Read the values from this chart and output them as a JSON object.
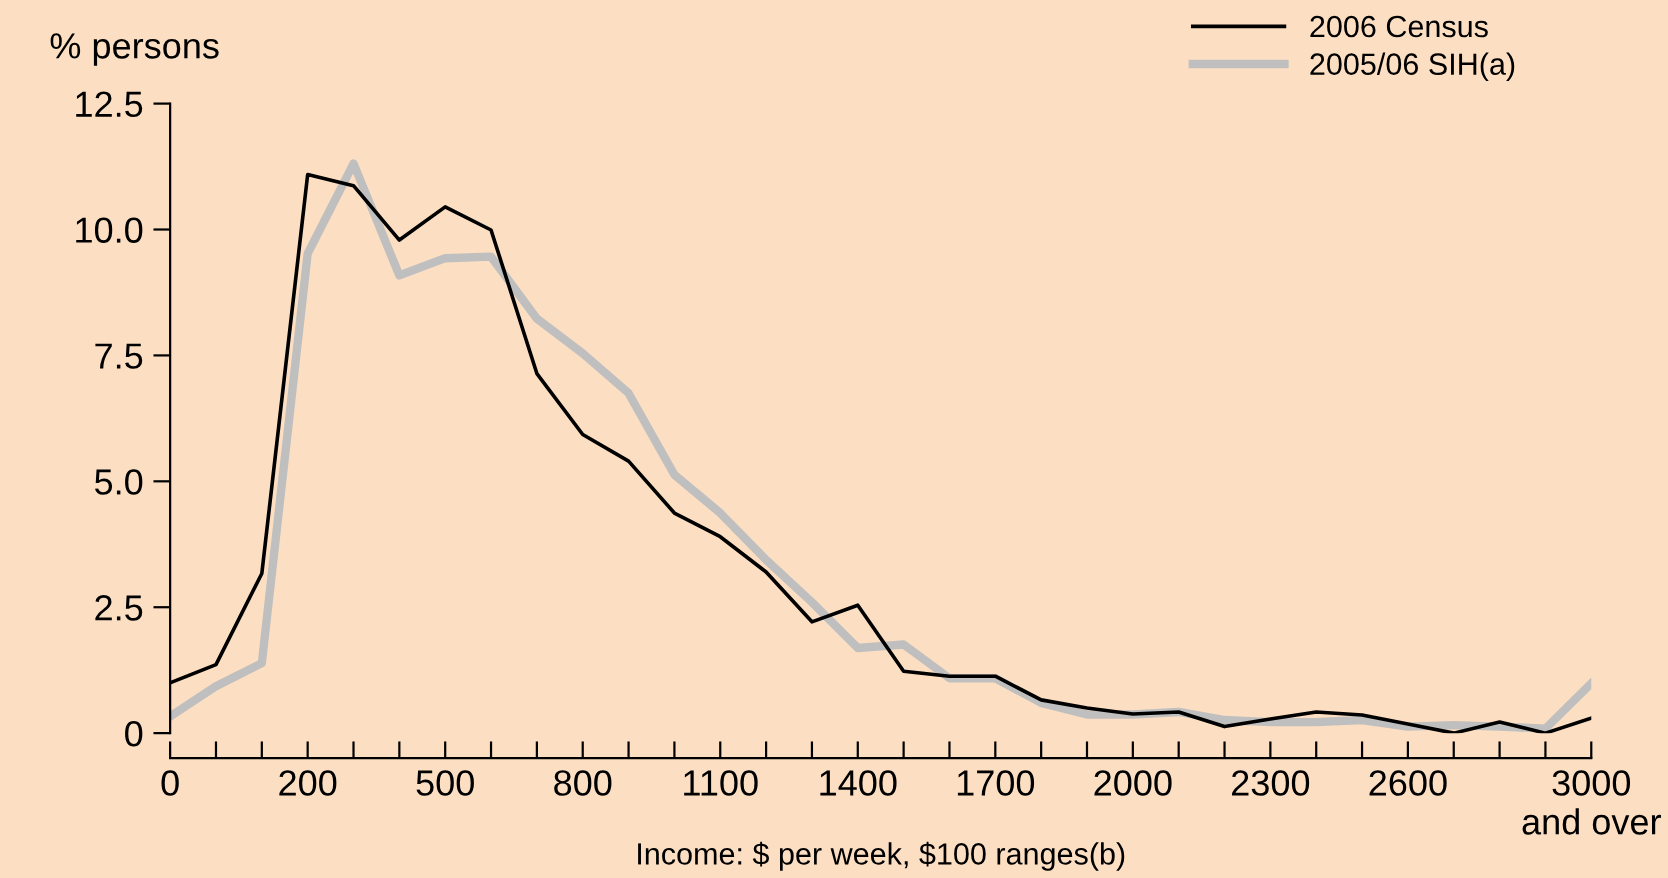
{
  "chart_data": {
    "type": "line",
    "xlabel": "Income: $ per week, $100 ranges(b)",
    "ylabel": "% persons",
    "categories": [
      "0",
      null,
      null,
      "200",
      null,
      null,
      "500",
      null,
      null,
      "800",
      null,
      null,
      "1100",
      null,
      null,
      "1400",
      null,
      null,
      "1700",
      null,
      null,
      "2000",
      null,
      null,
      "2300",
      null,
      null,
      "2600",
      null,
      null,
      null,
      "3000\nand over"
    ],
    "series": [
      {
        "name": "2006 Census",
        "color": "#000000",
        "values": [
          1.0,
          1.36,
          3.17,
          11.09,
          10.87,
          9.79,
          10.45,
          9.99,
          7.14,
          5.93,
          5.4,
          4.37,
          3.9,
          3.2,
          2.21,
          2.54,
          1.23,
          1.13,
          1.13,
          0.66,
          0.5,
          0.38,
          0.42,
          0.13,
          0.28,
          0.42,
          0.36,
          0.18,
          0.0,
          0.22,
          0.0,
          0.3
        ]
      },
      {
        "name": "2005/06 SIH(a)",
        "color": "#bfbfbf",
        "values": [
          0.33,
          0.93,
          1.39,
          9.52,
          11.31,
          9.09,
          9.43,
          9.46,
          8.23,
          7.54,
          6.75,
          5.13,
          4.37,
          3.44,
          2.6,
          1.69,
          1.76,
          1.09,
          1.09,
          0.6,
          0.37,
          0.37,
          0.42,
          0.26,
          0.22,
          0.22,
          0.26,
          0.13,
          0.16,
          0.13,
          0.09,
          0.99
        ]
      }
    ],
    "ylim": [
      0,
      12.5
    ],
    "yticks": [
      {
        "value": 0,
        "label": "0"
      },
      2.5,
      {
        "value": 5,
        "label": "5.0"
      },
      7.5,
      {
        "value": 10,
        "label": "10.0"
      },
      12.5
    ],
    "grid": false,
    "legend": "top right",
    "marker": "none",
    "line_style": "solid"
  }
}
